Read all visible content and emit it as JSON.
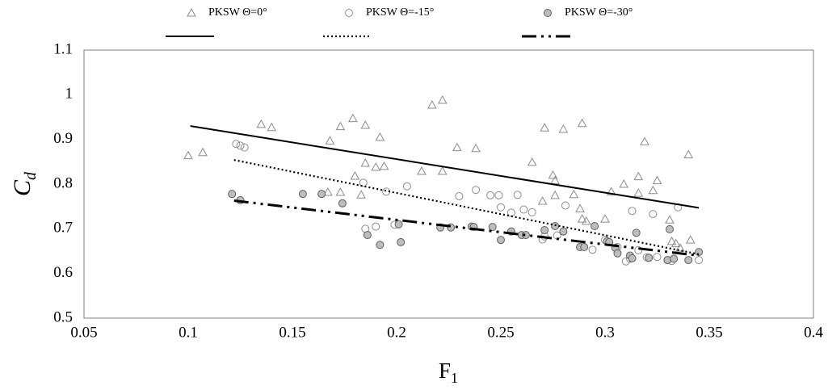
{
  "chart_data": {
    "type": "scatter",
    "xlabel": {
      "text": "F",
      "subscript": "1"
    },
    "ylabel": {
      "text": "C",
      "subscript": "d"
    },
    "xlim": [
      0.05,
      0.4
    ],
    "xticks": [
      0.05,
      0.1,
      0.15,
      0.2,
      0.25,
      0.3,
      0.35,
      0.4
    ],
    "ylim": [
      0.5,
      1.1
    ],
    "yticks": [
      0.5,
      0.6,
      0.7,
      0.8,
      0.9,
      1,
      1.1
    ],
    "grid": false,
    "legend": "top",
    "series": [
      {
        "name": "PKSW Θ=0°",
        "type": "scatter",
        "marker": "triangle",
        "color": "#8c8c8c",
        "fill": "none",
        "x": [
          0.1,
          0.107,
          0.135,
          0.14,
          0.168,
          0.173,
          0.179,
          0.185,
          0.192,
          0.18,
          0.185,
          0.19,
          0.194,
          0.173,
          0.167,
          0.183,
          0.212,
          0.217,
          0.222,
          0.222,
          0.229,
          0.238,
          0.265,
          0.271,
          0.28,
          0.289,
          0.275,
          0.276,
          0.276,
          0.27,
          0.285,
          0.288,
          0.289,
          0.291,
          0.3,
          0.303,
          0.309,
          0.316,
          0.316,
          0.319,
          0.323,
          0.325,
          0.331,
          0.332,
          0.334,
          0.336,
          0.34,
          0.341
        ],
        "values": [
          0.864,
          0.871,
          0.934,
          0.927,
          0.897,
          0.929,
          0.947,
          0.932,
          0.905,
          0.818,
          0.847,
          0.838,
          0.84,
          0.782,
          0.782,
          0.776,
          0.829,
          0.977,
          0.988,
          0.829,
          0.882,
          0.88,
          0.849,
          0.926,
          0.923,
          0.936,
          0.82,
          0.808,
          0.775,
          0.762,
          0.777,
          0.745,
          0.722,
          0.717,
          0.722,
          0.783,
          0.8,
          0.817,
          0.78,
          0.895,
          0.786,
          0.808,
          0.72,
          0.672,
          0.667,
          0.657,
          0.866,
          0.675
        ]
      },
      {
        "name": "PKSW Θ=-15°",
        "type": "scatter",
        "marker": "circle",
        "color": "#8c8c8c",
        "fill": "none",
        "x": [
          0.123,
          0.125,
          0.127,
          0.184,
          0.185,
          0.19,
          0.195,
          0.199,
          0.205,
          0.23,
          0.238,
          0.245,
          0.249,
          0.25,
          0.255,
          0.258,
          0.261,
          0.265,
          0.27,
          0.271,
          0.277,
          0.281,
          0.294,
          0.3,
          0.306,
          0.31,
          0.312,
          0.313,
          0.316,
          0.32,
          0.323,
          0.325,
          0.33,
          0.332,
          0.335,
          0.345
        ],
        "values": [
          0.89,
          0.886,
          0.882,
          0.803,
          0.7,
          0.705,
          0.783,
          0.709,
          0.795,
          0.773,
          0.787,
          0.775,
          0.775,
          0.748,
          0.736,
          0.776,
          0.743,
          0.737,
          0.676,
          0.683,
          0.685,
          0.752,
          0.653,
          0.675,
          0.659,
          0.627,
          0.633,
          0.74,
          0.652,
          0.636,
          0.733,
          0.637,
          0.63,
          0.628,
          0.748,
          0.63
        ]
      },
      {
        "name": "PKSW Θ=-30°",
        "type": "scatter",
        "marker": "circle",
        "color": "#5f5f5f",
        "fill": "#bdbdbd",
        "x": [
          0.121,
          0.125,
          0.155,
          0.164,
          0.174,
          0.186,
          0.192,
          0.202,
          0.201,
          0.221,
          0.226,
          0.236,
          0.237,
          0.246,
          0.25,
          0.255,
          0.26,
          0.262,
          0.271,
          0.276,
          0.28,
          0.288,
          0.29,
          0.295,
          0.301,
          0.302,
          0.305,
          0.306,
          0.312,
          0.313,
          0.315,
          0.321,
          0.33,
          0.331,
          0.333,
          0.34,
          0.345
        ],
        "values": [
          0.778,
          0.764,
          0.778,
          0.778,
          0.757,
          0.686,
          0.664,
          0.67,
          0.71,
          0.703,
          0.703,
          0.705,
          0.704,
          0.704,
          0.675,
          0.694,
          0.686,
          0.686,
          0.697,
          0.706,
          0.694,
          0.659,
          0.659,
          0.706,
          0.672,
          0.67,
          0.657,
          0.645,
          0.64,
          0.634,
          0.691,
          0.635,
          0.63,
          0.699,
          0.633,
          0.63,
          0.648
        ]
      },
      {
        "type": "line",
        "style": "solid",
        "color": "#000000",
        "x": [
          0.101,
          0.345
        ],
        "values": [
          0.93,
          0.747
        ]
      },
      {
        "type": "line",
        "style": "dotted",
        "color": "#000000",
        "x": [
          0.122,
          0.345
        ],
        "values": [
          0.854,
          0.643
        ]
      },
      {
        "type": "line",
        "style": "dashdot",
        "color": "#000000",
        "x": [
          0.122,
          0.345
        ],
        "values": [
          0.763,
          0.64
        ]
      }
    ]
  }
}
